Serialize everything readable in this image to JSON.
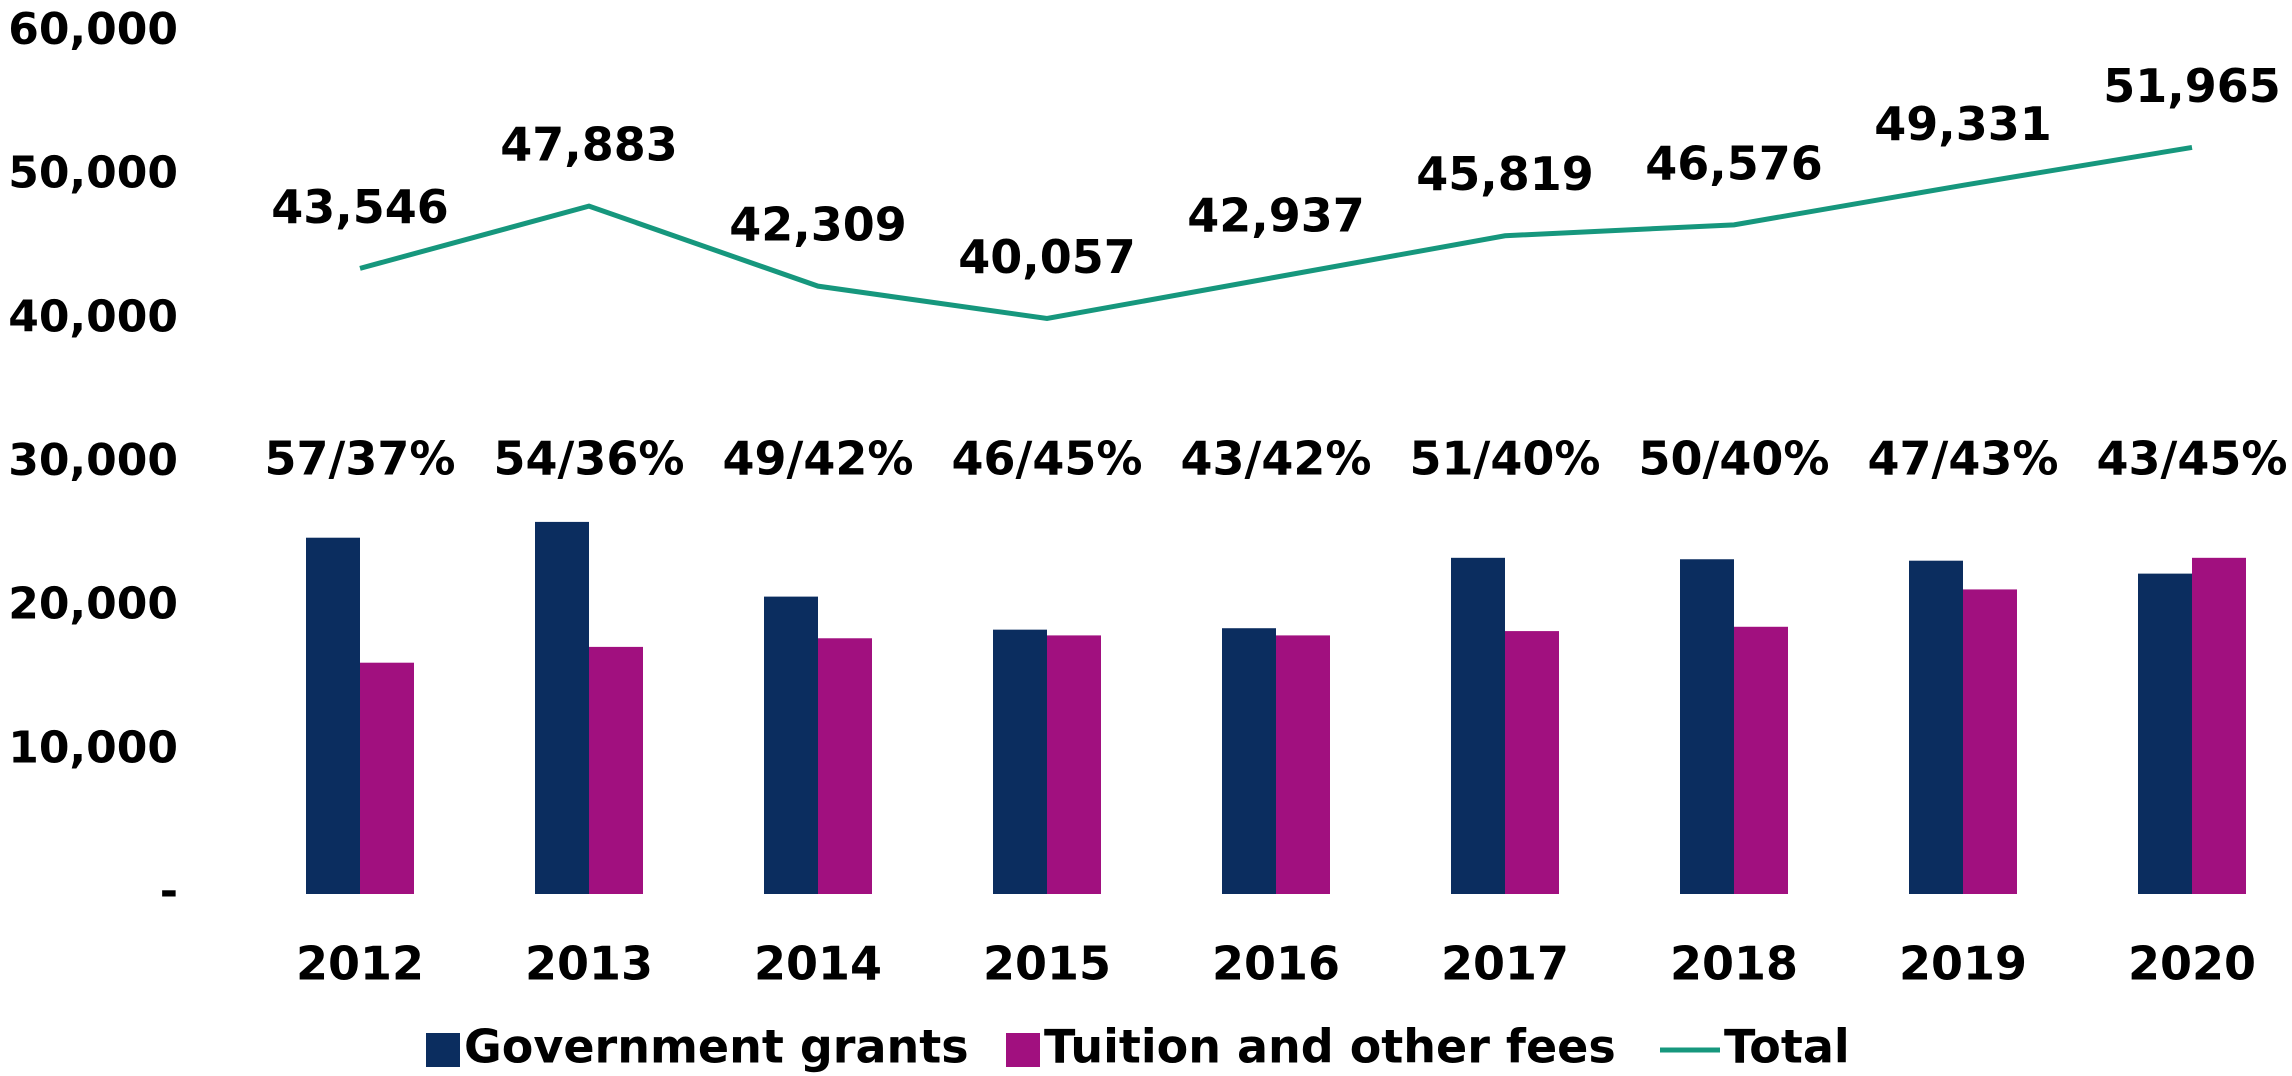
{
  "chart_data": {
    "type": "bar",
    "categories": [
      "2012",
      "2013",
      "2014",
      "2015",
      "2016",
      "2017",
      "2018",
      "2019",
      "2020"
    ],
    "series": [
      {
        "name": "Government grants",
        "type": "bar",
        "color": "#0b2d5f",
        "values": [
          24800,
          25900,
          20700,
          18400,
          18500,
          23400,
          23300,
          23200,
          22300
        ]
      },
      {
        "name": "Tuition and other fees",
        "type": "bar",
        "color": "#a1107f",
        "values": [
          16100,
          17200,
          17800,
          18000,
          18000,
          18300,
          18600,
          21200,
          23400
        ]
      },
      {
        "name": "Total",
        "type": "line",
        "color": "#16977d",
        "values": [
          43546,
          47883,
          42309,
          40057,
          42937,
          45819,
          46576,
          49331,
          51965
        ],
        "value_labels": [
          "43,546",
          "47,883",
          "42,309",
          "40,057",
          "42,937",
          "45,819",
          "46,576",
          "49,331",
          "51,965"
        ]
      }
    ],
    "annotations": [
      "57/37%",
      "54/36%",
      "49/42%",
      "46/45%",
      "43/42%",
      "51/40%",
      "50/40%",
      "47/43%",
      "43/45%"
    ],
    "ylim": [
      0,
      60000
    ],
    "yticks": [
      {
        "value": 0,
        "label": "-"
      },
      {
        "value": 10000,
        "label": "10,000"
      },
      {
        "value": 20000,
        "label": "20,000"
      },
      {
        "value": 30000,
        "label": "30,000"
      },
      {
        "value": 40000,
        "label": "40,000"
      },
      {
        "value": 50000,
        "label": "50,000"
      },
      {
        "value": 60000,
        "label": "60,000"
      }
    ],
    "grid": false,
    "legend": "bottom"
  }
}
